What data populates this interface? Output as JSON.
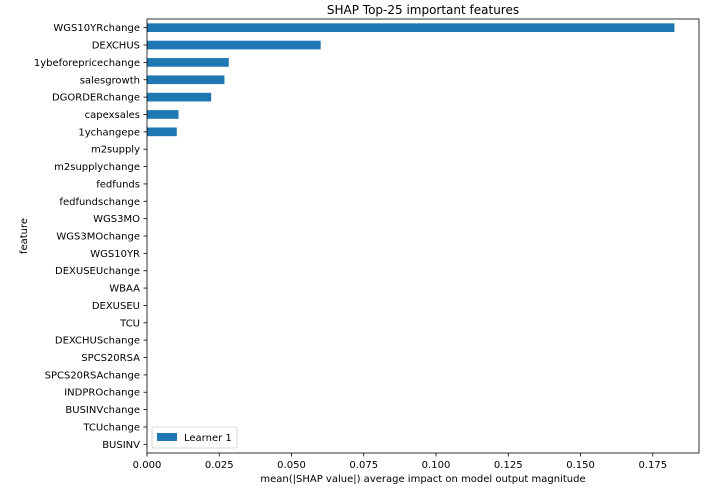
{
  "chart_data": {
    "type": "bar",
    "orientation": "horizontal",
    "title": "SHAP Top-25 important features",
    "xlabel": "mean(|SHAP value|) average impact on model output magnitude",
    "ylabel": "feature",
    "xlim": [
      0,
      0.191
    ],
    "xticks": [
      "0.000",
      "0.025",
      "0.050",
      "0.075",
      "0.100",
      "0.125",
      "0.150",
      "0.175"
    ],
    "xtick_values": [
      0,
      0.025,
      0.05,
      0.075,
      0.1,
      0.125,
      0.15,
      0.175
    ],
    "grid": false,
    "legend_position": "lower-left",
    "categories": [
      "WGS10YRchange",
      "DEXCHUS",
      "1ybeforepricechange",
      "salesgrowth",
      "DGORDERchange",
      "capexsales",
      "1ychangepe",
      "m2supply",
      "m2supplychange",
      "fedfunds",
      "fedfundschange",
      "WGS3MO",
      "WGS3MOchange",
      "WGS10YR",
      "DEXUSEUchange",
      "WBAA",
      "DEXUSEU",
      "TCU",
      "DEXCHUSchange",
      "SPCS20RSA",
      "SPCS20RSAchange",
      "INDPROchange",
      "BUSINVchange",
      "TCUchange",
      "BUSINV"
    ],
    "series": [
      {
        "name": "Learner 1",
        "color": "#1f77b4",
        "values": [
          0.1825,
          0.0601,
          0.0283,
          0.0268,
          0.0222,
          0.0109,
          0.0103,
          0,
          0,
          0,
          0,
          0,
          0,
          0,
          0,
          0,
          0,
          0,
          0,
          0,
          0,
          0,
          0,
          0,
          0
        ]
      }
    ]
  }
}
